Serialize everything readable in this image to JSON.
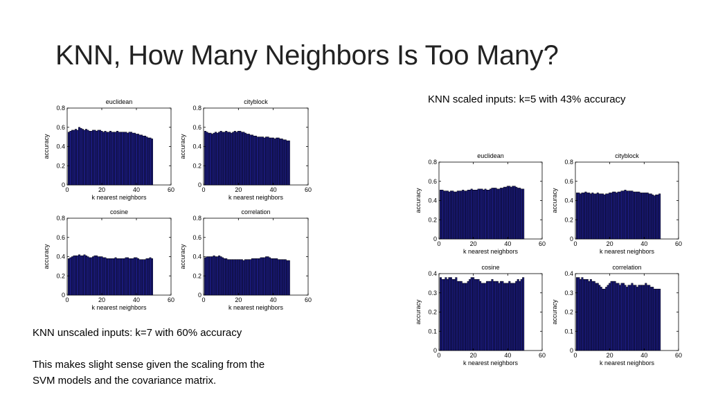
{
  "slide": {
    "title": "KNN, How Many Neighbors Is Too Many?",
    "scaled_caption": "KNN scaled inputs: k=5 with 43% accuracy",
    "unscaled_caption": "KNN unscaled inputs: k=7 with 60% accuracy",
    "note_line1": "This makes slight sense given the scaling from the",
    "note_line2": "SVM models and the covariance matrix."
  },
  "colors": {
    "bar_fill": "#1a1a7a",
    "bar_edge": "#000000",
    "axes": "#000000"
  },
  "chart_data": [
    {
      "type": "bar",
      "group": "unscaled",
      "title": "euclidean",
      "xlabel": "k nearest neighbors",
      "ylabel": "accuracy",
      "xlim": [
        0,
        60
      ],
      "ylim": [
        0,
        0.8
      ],
      "xticks": [
        0,
        20,
        40,
        60
      ],
      "yticks": [
        0,
        0.2,
        0.4,
        0.6,
        0.8
      ],
      "x_start": 1,
      "values": [
        0.55,
        0.56,
        0.57,
        0.57,
        0.58,
        0.57,
        0.6,
        0.59,
        0.58,
        0.57,
        0.58,
        0.57,
        0.56,
        0.56,
        0.57,
        0.57,
        0.56,
        0.57,
        0.57,
        0.56,
        0.55,
        0.56,
        0.55,
        0.55,
        0.56,
        0.55,
        0.55,
        0.55,
        0.56,
        0.55,
        0.55,
        0.55,
        0.55,
        0.55,
        0.54,
        0.55,
        0.55,
        0.54,
        0.54,
        0.53,
        0.53,
        0.52,
        0.52,
        0.51,
        0.51,
        0.5,
        0.49,
        0.49,
        0.48
      ]
    },
    {
      "type": "bar",
      "group": "unscaled",
      "title": "cityblock",
      "xlabel": "k nearest neighbors",
      "ylabel": "accuracy",
      "xlim": [
        0,
        60
      ],
      "ylim": [
        0,
        0.8
      ],
      "xticks": [
        0,
        20,
        40,
        60
      ],
      "yticks": [
        0,
        0.2,
        0.4,
        0.6,
        0.8
      ],
      "x_start": 1,
      "values": [
        0.56,
        0.55,
        0.54,
        0.54,
        0.53,
        0.54,
        0.55,
        0.54,
        0.55,
        0.56,
        0.55,
        0.55,
        0.56,
        0.55,
        0.55,
        0.54,
        0.55,
        0.56,
        0.55,
        0.56,
        0.56,
        0.55,
        0.55,
        0.54,
        0.53,
        0.53,
        0.52,
        0.52,
        0.51,
        0.51,
        0.5,
        0.5,
        0.5,
        0.5,
        0.49,
        0.5,
        0.5,
        0.49,
        0.49,
        0.49,
        0.48,
        0.49,
        0.49,
        0.48,
        0.48,
        0.47,
        0.47,
        0.46,
        0.46
      ]
    },
    {
      "type": "bar",
      "group": "unscaled",
      "title": "cosine",
      "xlabel": "k nearest neighbors",
      "ylabel": "accuracy",
      "xlim": [
        0,
        60
      ],
      "ylim": [
        0,
        0.8
      ],
      "xticks": [
        0,
        20,
        40,
        60
      ],
      "yticks": [
        0,
        0.2,
        0.4,
        0.6,
        0.8
      ],
      "x_start": 1,
      "values": [
        0.38,
        0.39,
        0.4,
        0.41,
        0.41,
        0.41,
        0.42,
        0.41,
        0.41,
        0.42,
        0.41,
        0.4,
        0.39,
        0.39,
        0.4,
        0.41,
        0.41,
        0.4,
        0.4,
        0.4,
        0.39,
        0.39,
        0.38,
        0.38,
        0.38,
        0.38,
        0.38,
        0.39,
        0.38,
        0.38,
        0.38,
        0.38,
        0.38,
        0.39,
        0.39,
        0.38,
        0.38,
        0.38,
        0.39,
        0.39,
        0.38,
        0.37,
        0.37,
        0.37,
        0.37,
        0.38,
        0.38,
        0.39,
        0.38
      ]
    },
    {
      "type": "bar",
      "group": "unscaled",
      "title": "correlation",
      "xlabel": "k nearest neighbors",
      "ylabel": "accuracy",
      "xlim": [
        0,
        60
      ],
      "ylim": [
        0,
        0.8
      ],
      "xticks": [
        0,
        20,
        40,
        60
      ],
      "yticks": [
        0,
        0.2,
        0.4,
        0.6,
        0.8
      ],
      "x_start": 1,
      "values": [
        0.39,
        0.4,
        0.4,
        0.4,
        0.4,
        0.41,
        0.4,
        0.4,
        0.41,
        0.4,
        0.39,
        0.38,
        0.38,
        0.37,
        0.37,
        0.37,
        0.37,
        0.37,
        0.37,
        0.37,
        0.37,
        0.37,
        0.36,
        0.37,
        0.37,
        0.37,
        0.37,
        0.38,
        0.38,
        0.38,
        0.38,
        0.38,
        0.39,
        0.39,
        0.39,
        0.4,
        0.4,
        0.39,
        0.38,
        0.38,
        0.38,
        0.38,
        0.37,
        0.37,
        0.37,
        0.37,
        0.37,
        0.36,
        0.36
      ]
    },
    {
      "type": "bar",
      "group": "scaled",
      "title": "euclidean",
      "xlabel": "k nearest neighbors",
      "ylabel": "accuracy",
      "xlim": [
        0,
        60
      ],
      "ylim": [
        0,
        0.8
      ],
      "xticks": [
        0,
        20,
        40,
        60
      ],
      "yticks": [
        0,
        0.2,
        0.4,
        0.6,
        0.8
      ],
      "x_start": 1,
      "values": [
        0.51,
        0.51,
        0.5,
        0.5,
        0.5,
        0.49,
        0.5,
        0.5,
        0.49,
        0.49,
        0.5,
        0.5,
        0.5,
        0.51,
        0.5,
        0.5,
        0.51,
        0.51,
        0.52,
        0.51,
        0.51,
        0.51,
        0.52,
        0.52,
        0.52,
        0.51,
        0.52,
        0.51,
        0.51,
        0.52,
        0.53,
        0.53,
        0.53,
        0.52,
        0.52,
        0.53,
        0.53,
        0.54,
        0.54,
        0.55,
        0.55,
        0.54,
        0.55,
        0.55,
        0.54,
        0.53,
        0.53,
        0.52,
        0.52
      ]
    },
    {
      "type": "bar",
      "group": "scaled",
      "title": "cityblock",
      "xlabel": "k nearest neighbors",
      "ylabel": "accuracy",
      "xlim": [
        0,
        60
      ],
      "ylim": [
        0,
        0.8
      ],
      "xticks": [
        0,
        20,
        40,
        60
      ],
      "yticks": [
        0,
        0.2,
        0.4,
        0.6,
        0.8
      ],
      "x_start": 1,
      "values": [
        0.48,
        0.48,
        0.47,
        0.48,
        0.48,
        0.49,
        0.48,
        0.48,
        0.47,
        0.48,
        0.47,
        0.47,
        0.48,
        0.47,
        0.47,
        0.47,
        0.46,
        0.47,
        0.47,
        0.48,
        0.48,
        0.49,
        0.49,
        0.48,
        0.49,
        0.49,
        0.5,
        0.5,
        0.51,
        0.5,
        0.5,
        0.5,
        0.5,
        0.49,
        0.49,
        0.49,
        0.49,
        0.48,
        0.48,
        0.48,
        0.48,
        0.48,
        0.47,
        0.47,
        0.46,
        0.45,
        0.46,
        0.46,
        0.47
      ]
    },
    {
      "type": "bar",
      "group": "scaled",
      "title": "cosine",
      "xlabel": "k nearest neighbors",
      "ylabel": "accuracy",
      "xlim": [
        0,
        60
      ],
      "ylim": [
        0,
        0.4
      ],
      "xticks": [
        0,
        20,
        40,
        60
      ],
      "yticks": [
        0,
        0.1,
        0.2,
        0.3,
        0.4
      ],
      "x_start": 1,
      "values": [
        0.38,
        0.37,
        0.37,
        0.38,
        0.37,
        0.38,
        0.38,
        0.37,
        0.37,
        0.38,
        0.36,
        0.36,
        0.36,
        0.35,
        0.35,
        0.35,
        0.36,
        0.37,
        0.38,
        0.38,
        0.37,
        0.37,
        0.37,
        0.36,
        0.35,
        0.35,
        0.35,
        0.36,
        0.36,
        0.36,
        0.37,
        0.36,
        0.36,
        0.36,
        0.35,
        0.36,
        0.36,
        0.35,
        0.35,
        0.35,
        0.36,
        0.35,
        0.35,
        0.35,
        0.36,
        0.37,
        0.36,
        0.37,
        0.38
      ]
    },
    {
      "type": "bar",
      "group": "scaled",
      "title": "correlation",
      "xlabel": "k nearest neighbors",
      "ylabel": "accuracy",
      "xlim": [
        0,
        60
      ],
      "ylim": [
        0,
        0.4
      ],
      "xticks": [
        0,
        20,
        40,
        60
      ],
      "yticks": [
        0,
        0.1,
        0.2,
        0.3,
        0.4
      ],
      "x_start": 1,
      "values": [
        0.38,
        0.38,
        0.37,
        0.38,
        0.37,
        0.37,
        0.37,
        0.36,
        0.37,
        0.36,
        0.36,
        0.35,
        0.35,
        0.34,
        0.33,
        0.32,
        0.32,
        0.33,
        0.34,
        0.35,
        0.36,
        0.36,
        0.36,
        0.35,
        0.35,
        0.34,
        0.35,
        0.35,
        0.34,
        0.33,
        0.34,
        0.34,
        0.35,
        0.34,
        0.34,
        0.33,
        0.34,
        0.34,
        0.34,
        0.34,
        0.35,
        0.34,
        0.34,
        0.33,
        0.33,
        0.32,
        0.32,
        0.32,
        0.32
      ]
    }
  ]
}
